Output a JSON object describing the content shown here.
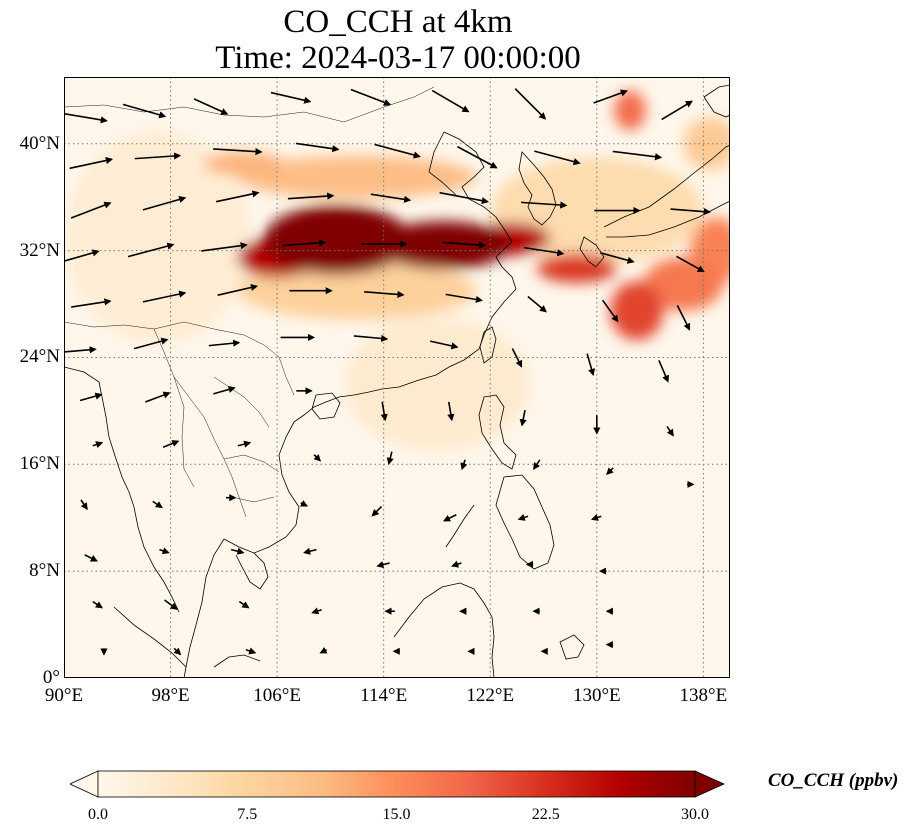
{
  "title": {
    "line1": "CO_CCH at 4km",
    "line2": "Time: 2024-03-17 00:00:00"
  },
  "map": {
    "lon_range": [
      90,
      140
    ],
    "lat_range": [
      0,
      45
    ],
    "lon_ticks": [
      {
        "value": 90,
        "label": "90°E"
      },
      {
        "value": 98,
        "label": "98°E"
      },
      {
        "value": 106,
        "label": "106°E"
      },
      {
        "value": 114,
        "label": "114°E"
      },
      {
        "value": 122,
        "label": "122°E"
      },
      {
        "value": 130,
        "label": "130°E"
      },
      {
        "value": 138,
        "label": "138°E"
      }
    ],
    "lat_ticks": [
      {
        "value": 0,
        "label": "0°"
      },
      {
        "value": 8,
        "label": "8°N"
      },
      {
        "value": 16,
        "label": "16°N"
      },
      {
        "value": 24,
        "label": "24°N"
      },
      {
        "value": 32,
        "label": "32°N"
      },
      {
        "value": 40,
        "label": "40°N"
      }
    ],
    "gridlines": "dotted",
    "colormap": "OrRd",
    "plumes": [
      {
        "lon": 110.5,
        "lat": 32.8,
        "rlon": 5.5,
        "rlat": 2.6,
        "value": 32
      },
      {
        "lon": 118.5,
        "lat": 32.4,
        "rlon": 5,
        "rlat": 1.8,
        "value": 30
      },
      {
        "lon": 123.5,
        "lat": 32.9,
        "rlon": 3,
        "rlat": 1.2,
        "value": 26
      },
      {
        "lon": 106,
        "lat": 31.5,
        "rlon": 3,
        "rlat": 1.5,
        "value": 26
      },
      {
        "lon": 103.5,
        "lat": 38.5,
        "rlon": 3,
        "rlat": 0.9,
        "value": 12
      },
      {
        "lon": 112,
        "lat": 37.5,
        "rlon": 9,
        "rlat": 1.6,
        "value": 11
      },
      {
        "lon": 112,
        "lat": 29,
        "rlon": 9,
        "rlat": 2.2,
        "value": 8
      },
      {
        "lon": 128.5,
        "lat": 30.7,
        "rlon": 3,
        "rlat": 1.1,
        "value": 22
      },
      {
        "lon": 133,
        "lat": 27.5,
        "rlon": 2,
        "rlat": 2.2,
        "value": 21
      },
      {
        "lon": 136.5,
        "lat": 29.5,
        "rlon": 3,
        "rlat": 2,
        "value": 17
      },
      {
        "lon": 139,
        "lat": 32,
        "rlon": 2,
        "rlat": 2.5,
        "value": 16
      },
      {
        "lon": 132.5,
        "lat": 42.5,
        "rlon": 1.2,
        "rlat": 1.5,
        "value": 18
      },
      {
        "lon": 138.5,
        "lat": 40,
        "rlon": 2,
        "rlat": 2,
        "value": 9
      },
      {
        "lon": 130,
        "lat": 35,
        "rlon": 8,
        "rlat": 4,
        "value": 6
      },
      {
        "lon": 118,
        "lat": 22,
        "rlon": 7,
        "rlat": 5,
        "value": 3
      },
      {
        "lon": 97,
        "lat": 33,
        "rlon": 7,
        "rlat": 8,
        "value": 2.5
      }
    ],
    "wind_vectors": [
      {
        "lon": 91.5,
        "lat": 42,
        "u": 30,
        "v": -5
      },
      {
        "lon": 96,
        "lat": 42.5,
        "u": 28,
        "v": -8
      },
      {
        "lon": 101,
        "lat": 42.8,
        "u": 22,
        "v": -10
      },
      {
        "lon": 107,
        "lat": 43.5,
        "u": 26,
        "v": -6
      },
      {
        "lon": 113,
        "lat": 43.5,
        "u": 26,
        "v": -10
      },
      {
        "lon": 119,
        "lat": 43.2,
        "u": 24,
        "v": -14
      },
      {
        "lon": 125,
        "lat": 43,
        "u": 20,
        "v": -20
      },
      {
        "lon": 131,
        "lat": 43.5,
        "u": 22,
        "v": 8
      },
      {
        "lon": 136,
        "lat": 42.5,
        "u": 20,
        "v": 12
      },
      {
        "lon": 92,
        "lat": 38.5,
        "u": 28,
        "v": 6
      },
      {
        "lon": 97,
        "lat": 39,
        "u": 30,
        "v": 2
      },
      {
        "lon": 103,
        "lat": 39.5,
        "u": 32,
        "v": -2
      },
      {
        "lon": 109,
        "lat": 39.8,
        "u": 28,
        "v": -4
      },
      {
        "lon": 115,
        "lat": 39.5,
        "u": 30,
        "v": -8
      },
      {
        "lon": 121,
        "lat": 39,
        "u": 26,
        "v": -14
      },
      {
        "lon": 127,
        "lat": 39,
        "u": 30,
        "v": -8
      },
      {
        "lon": 133,
        "lat": 39.2,
        "u": 32,
        "v": -4
      },
      {
        "lon": 92,
        "lat": 35,
        "u": 26,
        "v": 10
      },
      {
        "lon": 97.5,
        "lat": 35.5,
        "u": 28,
        "v": 8
      },
      {
        "lon": 103,
        "lat": 36,
        "u": 28,
        "v": 6
      },
      {
        "lon": 108.5,
        "lat": 36,
        "u": 30,
        "v": 2
      },
      {
        "lon": 114.5,
        "lat": 36,
        "u": 26,
        "v": -4
      },
      {
        "lon": 120,
        "lat": 36,
        "u": 32,
        "v": -6
      },
      {
        "lon": 126,
        "lat": 35.5,
        "u": 30,
        "v": -2
      },
      {
        "lon": 131.5,
        "lat": 35,
        "u": 30,
        "v": 0
      },
      {
        "lon": 137,
        "lat": 35,
        "u": 26,
        "v": -2
      },
      {
        "lon": 91,
        "lat": 31.5,
        "u": 28,
        "v": 8
      },
      {
        "lon": 96.5,
        "lat": 32,
        "u": 30,
        "v": 8
      },
      {
        "lon": 102,
        "lat": 32.2,
        "u": 30,
        "v": 4
      },
      {
        "lon": 108,
        "lat": 32.5,
        "u": 28,
        "v": 2
      },
      {
        "lon": 114,
        "lat": 32.5,
        "u": 30,
        "v": 0
      },
      {
        "lon": 120,
        "lat": 32.5,
        "u": 28,
        "v": -2
      },
      {
        "lon": 126,
        "lat": 32,
        "u": 26,
        "v": -4
      },
      {
        "lon": 131.5,
        "lat": 31.5,
        "u": 22,
        "v": -6
      },
      {
        "lon": 137,
        "lat": 31,
        "u": 18,
        "v": -10
      },
      {
        "lon": 92,
        "lat": 28,
        "u": 26,
        "v": 4
      },
      {
        "lon": 97.5,
        "lat": 28.5,
        "u": 28,
        "v": 6
      },
      {
        "lon": 103,
        "lat": 29,
        "u": 26,
        "v": 6
      },
      {
        "lon": 108.5,
        "lat": 29,
        "u": 28,
        "v": 0
      },
      {
        "lon": 114,
        "lat": 28.8,
        "u": 26,
        "v": -2
      },
      {
        "lon": 120,
        "lat": 28.5,
        "u": 24,
        "v": -4
      },
      {
        "lon": 125.5,
        "lat": 28,
        "u": 12,
        "v": -10
      },
      {
        "lon": 131,
        "lat": 27.5,
        "u": 10,
        "v": -14
      },
      {
        "lon": 136.5,
        "lat": 27,
        "u": 8,
        "v": -16
      },
      {
        "lon": 91,
        "lat": 24.5,
        "u": 24,
        "v": 2
      },
      {
        "lon": 96.5,
        "lat": 25,
        "u": 22,
        "v": 6
      },
      {
        "lon": 102,
        "lat": 25,
        "u": 20,
        "v": 2
      },
      {
        "lon": 107.5,
        "lat": 25.5,
        "u": 22,
        "v": 0
      },
      {
        "lon": 113,
        "lat": 25.5,
        "u": 22,
        "v": -2
      },
      {
        "lon": 118.5,
        "lat": 25,
        "u": 18,
        "v": -4
      },
      {
        "lon": 124,
        "lat": 24,
        "u": 6,
        "v": -12
      },
      {
        "lon": 129.5,
        "lat": 23.5,
        "u": 4,
        "v": -14
      },
      {
        "lon": 135,
        "lat": 23,
        "u": 6,
        "v": -14
      },
      {
        "lon": 92,
        "lat": 21,
        "u": 14,
        "v": 4
      },
      {
        "lon": 97,
        "lat": 21,
        "u": 16,
        "v": 6
      },
      {
        "lon": 102,
        "lat": 21.5,
        "u": 14,
        "v": 4
      },
      {
        "lon": 108,
        "lat": 21.5,
        "u": 10,
        "v": 0
      },
      {
        "lon": 114,
        "lat": 20,
        "u": 2,
        "v": -12
      },
      {
        "lon": 119,
        "lat": 20,
        "u": 2,
        "v": -12
      },
      {
        "lon": 124.5,
        "lat": 19.5,
        "u": -2,
        "v": -10
      },
      {
        "lon": 130,
        "lat": 19,
        "u": 0,
        "v": -12
      },
      {
        "lon": 135.5,
        "lat": 18.5,
        "u": 4,
        "v": -6
      },
      {
        "lon": 92.5,
        "lat": 17.5,
        "u": 6,
        "v": 2
      },
      {
        "lon": 98,
        "lat": 17.5,
        "u": 10,
        "v": 4
      },
      {
        "lon": 103.5,
        "lat": 17.5,
        "u": 8,
        "v": 2
      },
      {
        "lon": 109,
        "lat": 16.5,
        "u": 4,
        "v": -4
      },
      {
        "lon": 114.5,
        "lat": 16.5,
        "u": -2,
        "v": -8
      },
      {
        "lon": 120,
        "lat": 16,
        "u": -2,
        "v": -6
      },
      {
        "lon": 125.5,
        "lat": 16,
        "u": -4,
        "v": -6
      },
      {
        "lon": 131,
        "lat": 15.5,
        "u": -4,
        "v": -4
      },
      {
        "lon": 137,
        "lat": 14.5,
        "u": 4,
        "v": 0
      },
      {
        "lon": 91.5,
        "lat": 13,
        "u": 4,
        "v": -6
      },
      {
        "lon": 97,
        "lat": 13,
        "u": 6,
        "v": -4
      },
      {
        "lon": 102.5,
        "lat": 13.5,
        "u": 6,
        "v": 0
      },
      {
        "lon": 108,
        "lat": 13,
        "u": 4,
        "v": -2
      },
      {
        "lon": 113.5,
        "lat": 12.5,
        "u": -6,
        "v": -6
      },
      {
        "lon": 119,
        "lat": 12,
        "u": -8,
        "v": -4
      },
      {
        "lon": 124.5,
        "lat": 12,
        "u": -6,
        "v": -2
      },
      {
        "lon": 130,
        "lat": 12,
        "u": -6,
        "v": -2
      },
      {
        "lon": 92,
        "lat": 9,
        "u": 8,
        "v": -4
      },
      {
        "lon": 97.5,
        "lat": 9.5,
        "u": 6,
        "v": -2
      },
      {
        "lon": 103,
        "lat": 9.5,
        "u": 8,
        "v": -2
      },
      {
        "lon": 108.5,
        "lat": 9.5,
        "u": -8,
        "v": -2
      },
      {
        "lon": 114,
        "lat": 8.5,
        "u": -8,
        "v": -2
      },
      {
        "lon": 119.5,
        "lat": 8.5,
        "u": -6,
        "v": -2
      },
      {
        "lon": 125,
        "lat": 8.5,
        "u": -4,
        "v": 0
      },
      {
        "lon": 130.5,
        "lat": 8,
        "u": -4,
        "v": 0
      },
      {
        "lon": 92.5,
        "lat": 5.5,
        "u": 6,
        "v": -4
      },
      {
        "lon": 98,
        "lat": 5.5,
        "u": 8,
        "v": -6
      },
      {
        "lon": 103.5,
        "lat": 5.5,
        "u": 6,
        "v": -4
      },
      {
        "lon": 109,
        "lat": 5,
        "u": -6,
        "v": -2
      },
      {
        "lon": 114.5,
        "lat": 5,
        "u": -6,
        "v": 0
      },
      {
        "lon": 120,
        "lat": 5,
        "u": -4,
        "v": 0
      },
      {
        "lon": 125.5,
        "lat": 5,
        "u": -4,
        "v": 0
      },
      {
        "lon": 131,
        "lat": 5,
        "u": -4,
        "v": 0
      },
      {
        "lon": 93,
        "lat": 2,
        "u": 0,
        "v": -4
      },
      {
        "lon": 98.5,
        "lat": 2,
        "u": 4,
        "v": -4
      },
      {
        "lon": 104,
        "lat": 2,
        "u": 6,
        "v": -2
      },
      {
        "lon": 109.5,
        "lat": 2,
        "u": -4,
        "v": -2
      },
      {
        "lon": 115,
        "lat": 2,
        "u": -4,
        "v": 0
      },
      {
        "lon": 120.5,
        "lat": 2,
        "u": -2,
        "v": 0
      },
      {
        "lon": 126,
        "lat": 2,
        "u": -2,
        "v": 0
      },
      {
        "lon": 131,
        "lat": 2.5,
        "u": -4,
        "v": 0
      }
    ]
  },
  "colorbar": {
    "label": "CO_CCH (ppbv)",
    "min": 0,
    "max": 30,
    "extend": "both",
    "ticks": [
      "0.0",
      "7.5",
      "15.0",
      "22.5",
      "30.0"
    ],
    "tick_values": [
      0,
      7.5,
      15,
      22.5,
      30
    ],
    "colors": [
      "#fff7ec",
      "#fee8c8",
      "#fdd49e",
      "#fdbb84",
      "#fc8d59",
      "#ef6548",
      "#d7301f",
      "#b30000",
      "#7f0000"
    ]
  }
}
